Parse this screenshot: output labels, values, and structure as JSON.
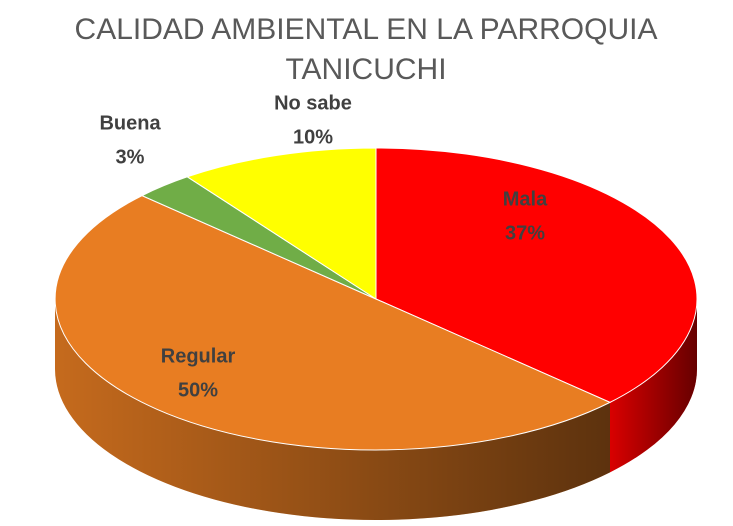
{
  "chart_data": {
    "type": "pie3d",
    "title": "CALIDAD AMBIENTAL EN LA PARROQUIA TANICUCHI",
    "categories": [
      "Mala",
      "Regular",
      "Buena",
      "No sabe"
    ],
    "values": [
      37,
      50,
      3,
      10
    ],
    "value_labels": [
      "37%",
      "50%",
      "3%",
      "10%"
    ],
    "colors": [
      "#ff0000",
      "#e87d22",
      "#70ad47",
      "#ffff00"
    ]
  }
}
